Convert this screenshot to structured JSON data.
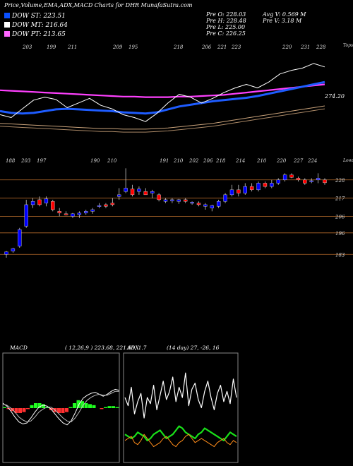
{
  "header": {
    "title": "Price,Volume,EMA,ADX,MACD Charts for DHR MunafaSutra.com",
    "legend": [
      {
        "label": "DOW ST: 223.51",
        "color": "#0a50ff"
      },
      {
        "label": "DOW MT: 216.64",
        "color": "#ffffff"
      },
      {
        "label": "DOW PT: 213.65",
        "color": "#ff66ff"
      }
    ],
    "prev_ohlc": [
      "Pre O: 228.03",
      "Pre H: 228.48",
      "Pre L: 225.00",
      "Pre C: 226.25"
    ],
    "volume": [
      "Avg V: 0.569 M",
      "Pre V: 3.18 M"
    ]
  },
  "colors": {
    "up": "#0000ff",
    "down": "#ff0000",
    "ema_short": "#1e5cff",
    "ema_long": "#ff40ff",
    "price_line": "#ffffff",
    "level_line": "#b56a2a",
    "adx_line": "#19e019",
    "adx_other": "#ff8c1a",
    "macd_hist": "#20ff20",
    "macd_neg": "#ff3030"
  },
  "chart_data": [
    {
      "type": "line",
      "name": "ema-panel",
      "top_labels": [
        "203",
        "199",
        "211",
        "",
        "209",
        "195",
        "",
        "218",
        "206",
        "221",
        "223",
        "",
        "",
        "220",
        "231",
        "228"
      ],
      "bottom_labels": [
        "188",
        "203",
        "197",
        "",
        "",
        "",
        "190",
        "210",
        "",
        "191",
        "210",
        "202",
        "206",
        "218",
        "214",
        "",
        "210",
        "220",
        "227",
        "224"
      ],
      "right_top_label": "Tops",
      "right_bottom_label": "Lows",
      "price_label": "274.20",
      "series": [
        {
          "name": "DOW PT",
          "values": [
            262,
            261,
            260,
            259,
            258,
            257,
            256,
            255,
            254,
            253,
            252,
            251,
            251,
            250,
            250,
            250,
            251,
            251,
            252,
            253,
            254,
            256,
            258,
            260,
            262,
            264,
            266,
            268,
            270,
            272
          ]
        },
        {
          "name": "DOW ST",
          "values": [
            226,
            223,
            222,
            223,
            226,
            229,
            230,
            229,
            228,
            227,
            226,
            224,
            223,
            222,
            224,
            229,
            234,
            237,
            240,
            243,
            245,
            247,
            249,
            252,
            256,
            260,
            264,
            268,
            272,
            276
          ]
        },
        {
          "name": "Price",
          "values": [
            220,
            215,
            230,
            245,
            250,
            246,
            232,
            240,
            248,
            236,
            230,
            220,
            215,
            208,
            222,
            240,
            255,
            250,
            240,
            248,
            258,
            266,
            272,
            266,
            276,
            290,
            296,
            300,
            308,
            302
          ]
        }
      ]
    },
    {
      "type": "candlestick",
      "name": "price-panel",
      "y_ticks": [
        "228",
        "217",
        "206",
        "196",
        "183"
      ],
      "candles": [
        {
          "o": 183,
          "h": 185,
          "l": 181,
          "c": 184.5
        },
        {
          "o": 185,
          "h": 187,
          "l": 184,
          "c": 186.5
        },
        {
          "o": 188,
          "h": 199,
          "l": 187,
          "c": 198
        },
        {
          "o": 200,
          "h": 216,
          "l": 199,
          "c": 213
        },
        {
          "o": 213,
          "h": 217,
          "l": 211,
          "c": 215
        },
        {
          "o": 216,
          "h": 218,
          "l": 212,
          "c": 213
        },
        {
          "o": 214,
          "h": 218,
          "l": 212,
          "c": 216.5
        },
        {
          "o": 215,
          "h": 216,
          "l": 209,
          "c": 210
        },
        {
          "o": 209,
          "h": 211,
          "l": 206,
          "c": 208
        },
        {
          "o": 207.5,
          "h": 209,
          "l": 206.5,
          "c": 207
        },
        {
          "o": 206,
          "h": 208,
          "l": 205,
          "c": 207.5
        },
        {
          "o": 207,
          "h": 209,
          "l": 205,
          "c": 208
        },
        {
          "o": 208,
          "h": 210,
          "l": 207,
          "c": 209
        },
        {
          "o": 209,
          "h": 211,
          "l": 207.5,
          "c": 210
        },
        {
          "o": 212,
          "h": 214,
          "l": 211,
          "c": 212.5
        },
        {
          "o": 213,
          "h": 214,
          "l": 211,
          "c": 212
        },
        {
          "o": 214,
          "h": 217,
          "l": 212,
          "c": 213
        },
        {
          "o": 218,
          "h": 223,
          "l": 216,
          "c": 219
        },
        {
          "o": 221,
          "h": 235,
          "l": 220,
          "c": 223
        },
        {
          "o": 222.5,
          "h": 225,
          "l": 218,
          "c": 219
        },
        {
          "o": 221,
          "h": 224,
          "l": 219,
          "c": 222.5
        },
        {
          "o": 221,
          "h": 223,
          "l": 219,
          "c": 219
        },
        {
          "o": 220,
          "h": 222,
          "l": 217,
          "c": 221
        },
        {
          "o": 219,
          "h": 220,
          "l": 215,
          "c": 216
        },
        {
          "o": 215,
          "h": 217,
          "l": 214,
          "c": 216
        },
        {
          "o": 215.5,
          "h": 217,
          "l": 214,
          "c": 216
        },
        {
          "o": 215,
          "h": 216.5,
          "l": 213.5,
          "c": 216
        },
        {
          "o": 216,
          "h": 217,
          "l": 214,
          "c": 215
        },
        {
          "o": 214,
          "h": 215,
          "l": 213,
          "c": 214.5
        },
        {
          "o": 214,
          "h": 215,
          "l": 212,
          "c": 213
        },
        {
          "o": 212,
          "h": 214,
          "l": 210,
          "c": 213
        },
        {
          "o": 211,
          "h": 213,
          "l": 209,
          "c": 212.5
        },
        {
          "o": 212,
          "h": 216,
          "l": 211,
          "c": 215
        },
        {
          "o": 215,
          "h": 220,
          "l": 214,
          "c": 219
        },
        {
          "o": 219,
          "h": 225,
          "l": 218,
          "c": 222
        },
        {
          "o": 222,
          "h": 225,
          "l": 218,
          "c": 220
        },
        {
          "o": 220,
          "h": 226,
          "l": 219,
          "c": 224
        },
        {
          "o": 224,
          "h": 226,
          "l": 221,
          "c": 222
        },
        {
          "o": 222,
          "h": 227,
          "l": 221,
          "c": 226
        },
        {
          "o": 226,
          "h": 227,
          "l": 223,
          "c": 224
        },
        {
          "o": 224,
          "h": 228,
          "l": 223,
          "c": 226
        },
        {
          "o": 226,
          "h": 229,
          "l": 225,
          "c": 228
        },
        {
          "o": 228,
          "h": 232,
          "l": 227,
          "c": 231
        },
        {
          "o": 231,
          "h": 232,
          "l": 229,
          "c": 229.5
        },
        {
          "o": 229,
          "h": 230,
          "l": 227,
          "c": 228
        },
        {
          "o": 228,
          "h": 229,
          "l": 225,
          "c": 226
        },
        {
          "o": 227,
          "h": 229,
          "l": 226,
          "c": 227.5
        },
        {
          "o": 228,
          "h": 232,
          "l": 226,
          "c": 229
        },
        {
          "o": 228,
          "h": 229,
          "l": 225,
          "c": 226.25
        }
      ]
    },
    {
      "type": "line",
      "name": "macd-panel",
      "title": "MACD",
      "params": "( 12,26,9 ) 223.68, 221.93, 1.7",
      "series": [
        {
          "name": "macd",
          "values": [
            0.5,
            0.2,
            -0.3,
            -0.9,
            -1.4,
            -1.6,
            -1.5,
            -1.0,
            -0.4,
            0.1,
            0.3,
            0.2,
            -0.1,
            -0.6,
            -1.1,
            -1.5,
            -1.7,
            -1.3,
            -0.5,
            0.4,
            1.0,
            1.3,
            1.5,
            1.6,
            1.4,
            1.2,
            1.4,
            1.7,
            1.9,
            1.8
          ]
        },
        {
          "name": "signal",
          "values": [
            0.4,
            0.3,
            0.0,
            -0.4,
            -0.9,
            -1.2,
            -1.4,
            -1.3,
            -0.9,
            -0.4,
            -0.1,
            0.1,
            0.1,
            -0.2,
            -0.6,
            -1.0,
            -1.3,
            -1.4,
            -1.0,
            -0.4,
            0.3,
            0.8,
            1.1,
            1.3,
            1.4,
            1.3,
            1.3,
            1.5,
            1.7,
            1.7
          ]
        }
      ],
      "histogram": [
        0.1,
        -0.1,
        -0.3,
        -0.5,
        -0.5,
        -0.4,
        -0.1,
        0.3,
        0.5,
        0.5,
        0.4,
        0.1,
        -0.2,
        -0.4,
        -0.5,
        -0.5,
        -0.4,
        0.1,
        0.5,
        0.8,
        0.7,
        0.5,
        0.4,
        0.3,
        0.0,
        -0.1,
        0.1,
        0.2,
        0.2,
        0.1
      ]
    },
    {
      "type": "line",
      "name": "adx-panel",
      "title": "ADX",
      "params": "(14 day) 27, -26, 16",
      "series": [
        {
          "name": "adx-white",
          "values": [
            30,
            26,
            35,
            22,
            28,
            32,
            20,
            30,
            27,
            36,
            24,
            31,
            38,
            29,
            33,
            40,
            28,
            35,
            30,
            42,
            26,
            34,
            37,
            29,
            25,
            33,
            38,
            30,
            24,
            32,
            36,
            28,
            33,
            27,
            39,
            30
          ]
        },
        {
          "name": "adx-green",
          "values": [
            12,
            11,
            10,
            11,
            13,
            12,
            11,
            9,
            10,
            12,
            13,
            14,
            12,
            10,
            11,
            12,
            14,
            16,
            15,
            13,
            12,
            11,
            10,
            12,
            13,
            15,
            14,
            13,
            12,
            11,
            10,
            9,
            11,
            13,
            12,
            11
          ]
        },
        {
          "name": "adx-orange",
          "values": [
            9,
            10,
            11,
            8,
            7,
            9,
            12,
            10,
            8,
            6,
            7,
            8,
            10,
            11,
            9,
            7,
            6,
            8,
            9,
            11,
            12,
            10,
            8,
            9,
            10,
            9,
            8,
            7,
            6,
            8,
            9,
            10,
            8,
            7,
            9,
            8
          ]
        }
      ]
    }
  ]
}
